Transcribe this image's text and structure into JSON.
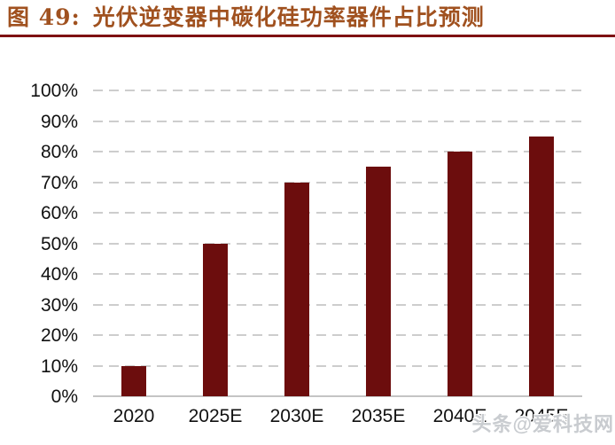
{
  "header": {
    "figure_label": "图 49:",
    "title": "光伏逆变器中碳化硅功率器件占比预测"
  },
  "watermark": {
    "text": "头条@爱科技网"
  },
  "colors": {
    "title_text": "#A0511F",
    "divider": "#7E1112",
    "bar": "#6C0D0D",
    "gridline": "#CDCDCD",
    "axis_line": "#C4C4C4",
    "axis_text": "#111111",
    "watermark_text": "#C9CCD0",
    "background": "#FFFFFF"
  },
  "chart_data": {
    "type": "bar",
    "title": "光伏逆变器中碳化硅功率器件占比预测",
    "categories": [
      "2020",
      "2025E",
      "2030E",
      "2035E",
      "2040E",
      "2045E"
    ],
    "values": [
      10,
      50,
      70,
      75,
      80,
      85
    ],
    "unit": "%",
    "xlabel": "",
    "ylabel": "",
    "ylim": [
      0,
      100
    ],
    "y_tick_step": 10,
    "y_tick_labels": [
      "100%",
      "90%",
      "80%",
      "70%",
      "60%",
      "50%",
      "40%",
      "30%",
      "20%",
      "10%",
      "0%"
    ],
    "grid": "dashed-horizontal",
    "legend": "none"
  }
}
